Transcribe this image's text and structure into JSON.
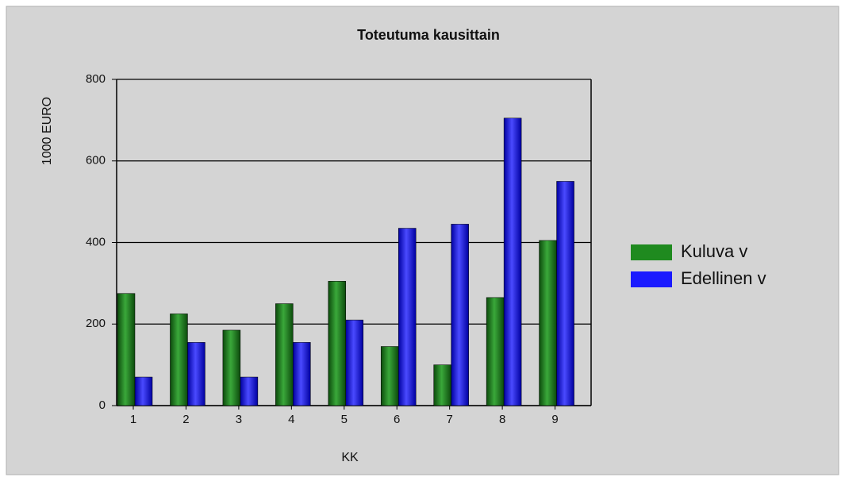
{
  "chart_data": {
    "type": "bar",
    "title": "Toteutuma kausittain",
    "x_label": "KK",
    "y_label": "1000 EURO",
    "categories": [
      "1",
      "2",
      "3",
      "4",
      "5",
      "6",
      "7",
      "8",
      "9"
    ],
    "series": [
      {
        "name": "Kuluva v",
        "color": "#1f8a1f",
        "values": [
          275,
          225,
          185,
          250,
          305,
          145,
          100,
          265,
          405
        ]
      },
      {
        "name": "Edellinen v",
        "color": "#1a1aff",
        "values": [
          70,
          155,
          70,
          155,
          210,
          435,
          445,
          705,
          550
        ]
      }
    ],
    "ylim": [
      0,
      800
    ],
    "yticks": [
      0,
      200,
      400,
      600,
      800
    ],
    "grid": true,
    "legend": "right"
  }
}
